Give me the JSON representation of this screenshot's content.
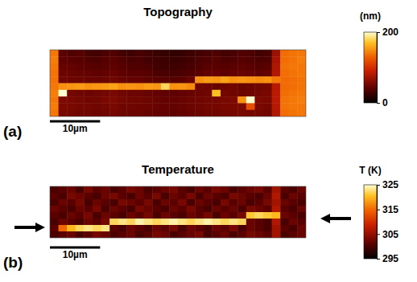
{
  "chart_data": [
    {
      "type": "heatmap",
      "title": "Topography",
      "panel_label": "(a)",
      "xlim": [
        0,
        51
      ],
      "ylim": [
        0,
        13.4
      ],
      "tick_labels": false,
      "scale_bar": {
        "length": 10,
        "label": "10µm"
      },
      "colorbar": {
        "label": "(nm)",
        "range": [
          0,
          200
        ],
        "ticks": [
          0,
          200
        ]
      },
      "cells": [
        [
          140,
          40,
          35,
          38,
          32,
          30,
          34,
          36,
          30,
          28,
          32,
          30,
          26,
          24,
          22,
          24,
          28,
          30,
          33,
          35,
          30,
          32,
          36,
          34,
          30,
          32,
          70,
          135,
          138,
          140
        ],
        [
          142,
          42,
          40,
          38,
          36,
          34,
          38,
          40,
          35,
          32,
          34,
          30,
          28,
          26,
          25,
          27,
          30,
          34,
          36,
          38,
          34,
          36,
          38,
          36,
          34,
          35,
          75,
          136,
          138,
          142
        ],
        [
          140,
          45,
          44,
          42,
          40,
          38,
          40,
          42,
          38,
          36,
          36,
          34,
          30,
          28,
          28,
          30,
          32,
          36,
          40,
          40,
          38,
          40,
          42,
          40,
          38,
          40,
          78,
          138,
          140,
          140
        ],
        [
          138,
          48,
          46,
          45,
          44,
          42,
          44,
          46,
          42,
          40,
          40,
          38,
          34,
          32,
          32,
          34,
          36,
          40,
          44,
          44,
          42,
          44,
          46,
          44,
          42,
          44,
          80,
          136,
          138,
          140
        ],
        [
          138,
          50,
          48,
          48,
          46,
          46,
          48,
          50,
          46,
          44,
          44,
          42,
          40,
          38,
          38,
          40,
          46,
          150,
          155,
          152,
          158,
          150,
          152,
          150,
          148,
          150,
          140,
          134,
          136,
          138
        ],
        [
          140,
          150,
          152,
          155,
          150,
          152,
          155,
          158,
          150,
          152,
          150,
          155,
          152,
          180,
          150,
          152,
          148,
          50,
          48,
          46,
          48,
          50,
          46,
          48,
          50,
          52,
          82,
          134,
          136,
          138
        ],
        [
          142,
          200,
          52,
          50,
          48,
          50,
          52,
          54,
          50,
          48,
          48,
          46,
          44,
          42,
          42,
          44,
          46,
          48,
          50,
          170,
          52,
          50,
          48,
          50,
          52,
          54,
          84,
          136,
          138,
          140
        ],
        [
          140,
          56,
          54,
          52,
          50,
          50,
          54,
          56,
          52,
          50,
          50,
          48,
          46,
          44,
          44,
          46,
          48,
          50,
          52,
          52,
          54,
          56,
          150,
          200,
          56,
          54,
          84,
          138,
          140,
          142
        ],
        [
          142,
          55,
          54,
          52,
          52,
          50,
          52,
          54,
          50,
          50,
          48,
          48,
          46,
          44,
          44,
          46,
          48,
          50,
          52,
          52,
          54,
          54,
          56,
          120,
          54,
          52,
          82,
          138,
          140,
          140
        ],
        [
          140,
          54,
          52,
          50,
          50,
          48,
          50,
          52,
          50,
          48,
          48,
          46,
          44,
          44,
          42,
          44,
          46,
          48,
          50,
          50,
          52,
          52,
          54,
          52,
          52,
          50,
          80,
          136,
          138,
          140
        ]
      ]
    },
    {
      "type": "heatmap",
      "title": "Temperature",
      "panel_label": "(b)",
      "xlim": [
        0,
        51
      ],
      "ylim": [
        0,
        10.3
      ],
      "tick_labels": false,
      "scale_bar": {
        "length": 10,
        "label": "10µm"
      },
      "colorbar": {
        "label": "T (K)",
        "range": [
          295,
          325
        ],
        "ticks": [
          295,
          305,
          315,
          325
        ]
      },
      "cells": [
        [
          300,
          301,
          302,
          300,
          303,
          301,
          302,
          300,
          301,
          303,
          302,
          300,
          301,
          302,
          303,
          301,
          300,
          302,
          301,
          303,
          302,
          300,
          301,
          302,
          303,
          301,
          306,
          301,
          300,
          302
        ],
        [
          301,
          300,
          303,
          302,
          301,
          300,
          302,
          303,
          301,
          300,
          302,
          301,
          303,
          300,
          302,
          301,
          303,
          300,
          302,
          301,
          300,
          303,
          302,
          301,
          300,
          302,
          307,
          300,
          302,
          301
        ],
        [
          300,
          302,
          301,
          303,
          300,
          302,
          301,
          300,
          303,
          302,
          301,
          303,
          300,
          302,
          301,
          303,
          300,
          302,
          301,
          300,
          303,
          301,
          302,
          300,
          301,
          303,
          306,
          302,
          301,
          300
        ],
        [
          302,
          301,
          300,
          302,
          301,
          303,
          300,
          302,
          301,
          300,
          303,
          302,
          301,
          300,
          302,
          301,
          303,
          301,
          300,
          302,
          301,
          302,
          300,
          303,
          302,
          301,
          307,
          301,
          300,
          302
        ],
        [
          301,
          300,
          302,
          301,
          303,
          300,
          302,
          301,
          300,
          302,
          301,
          303,
          300,
          302,
          301,
          300,
          302,
          301,
          303,
          300,
          302,
          301,
          303,
          321,
          322,
          321,
          320,
          302,
          301,
          300
        ],
        [
          300,
          302,
          301,
          300,
          302,
          301,
          303,
          322,
          323,
          322,
          324,
          323,
          322,
          323,
          324,
          323,
          322,
          323,
          324,
          323,
          322,
          323,
          322,
          302,
          301,
          300,
          307,
          300,
          302,
          301
        ],
        [
          301,
          315,
          320,
          322,
          323,
          322,
          323,
          301,
          300,
          302,
          301,
          300,
          302,
          301,
          303,
          300,
          302,
          301,
          300,
          302,
          301,
          303,
          300,
          302,
          301,
          300,
          306,
          301,
          300,
          302
        ],
        [
          300,
          301,
          302,
          300,
          301,
          303,
          302,
          300,
          301,
          302,
          300,
          301,
          303,
          302,
          300,
          301,
          302,
          303,
          300,
          301,
          302,
          300,
          301,
          303,
          302,
          301,
          306,
          300,
          301,
          302
        ]
      ]
    }
  ]
}
